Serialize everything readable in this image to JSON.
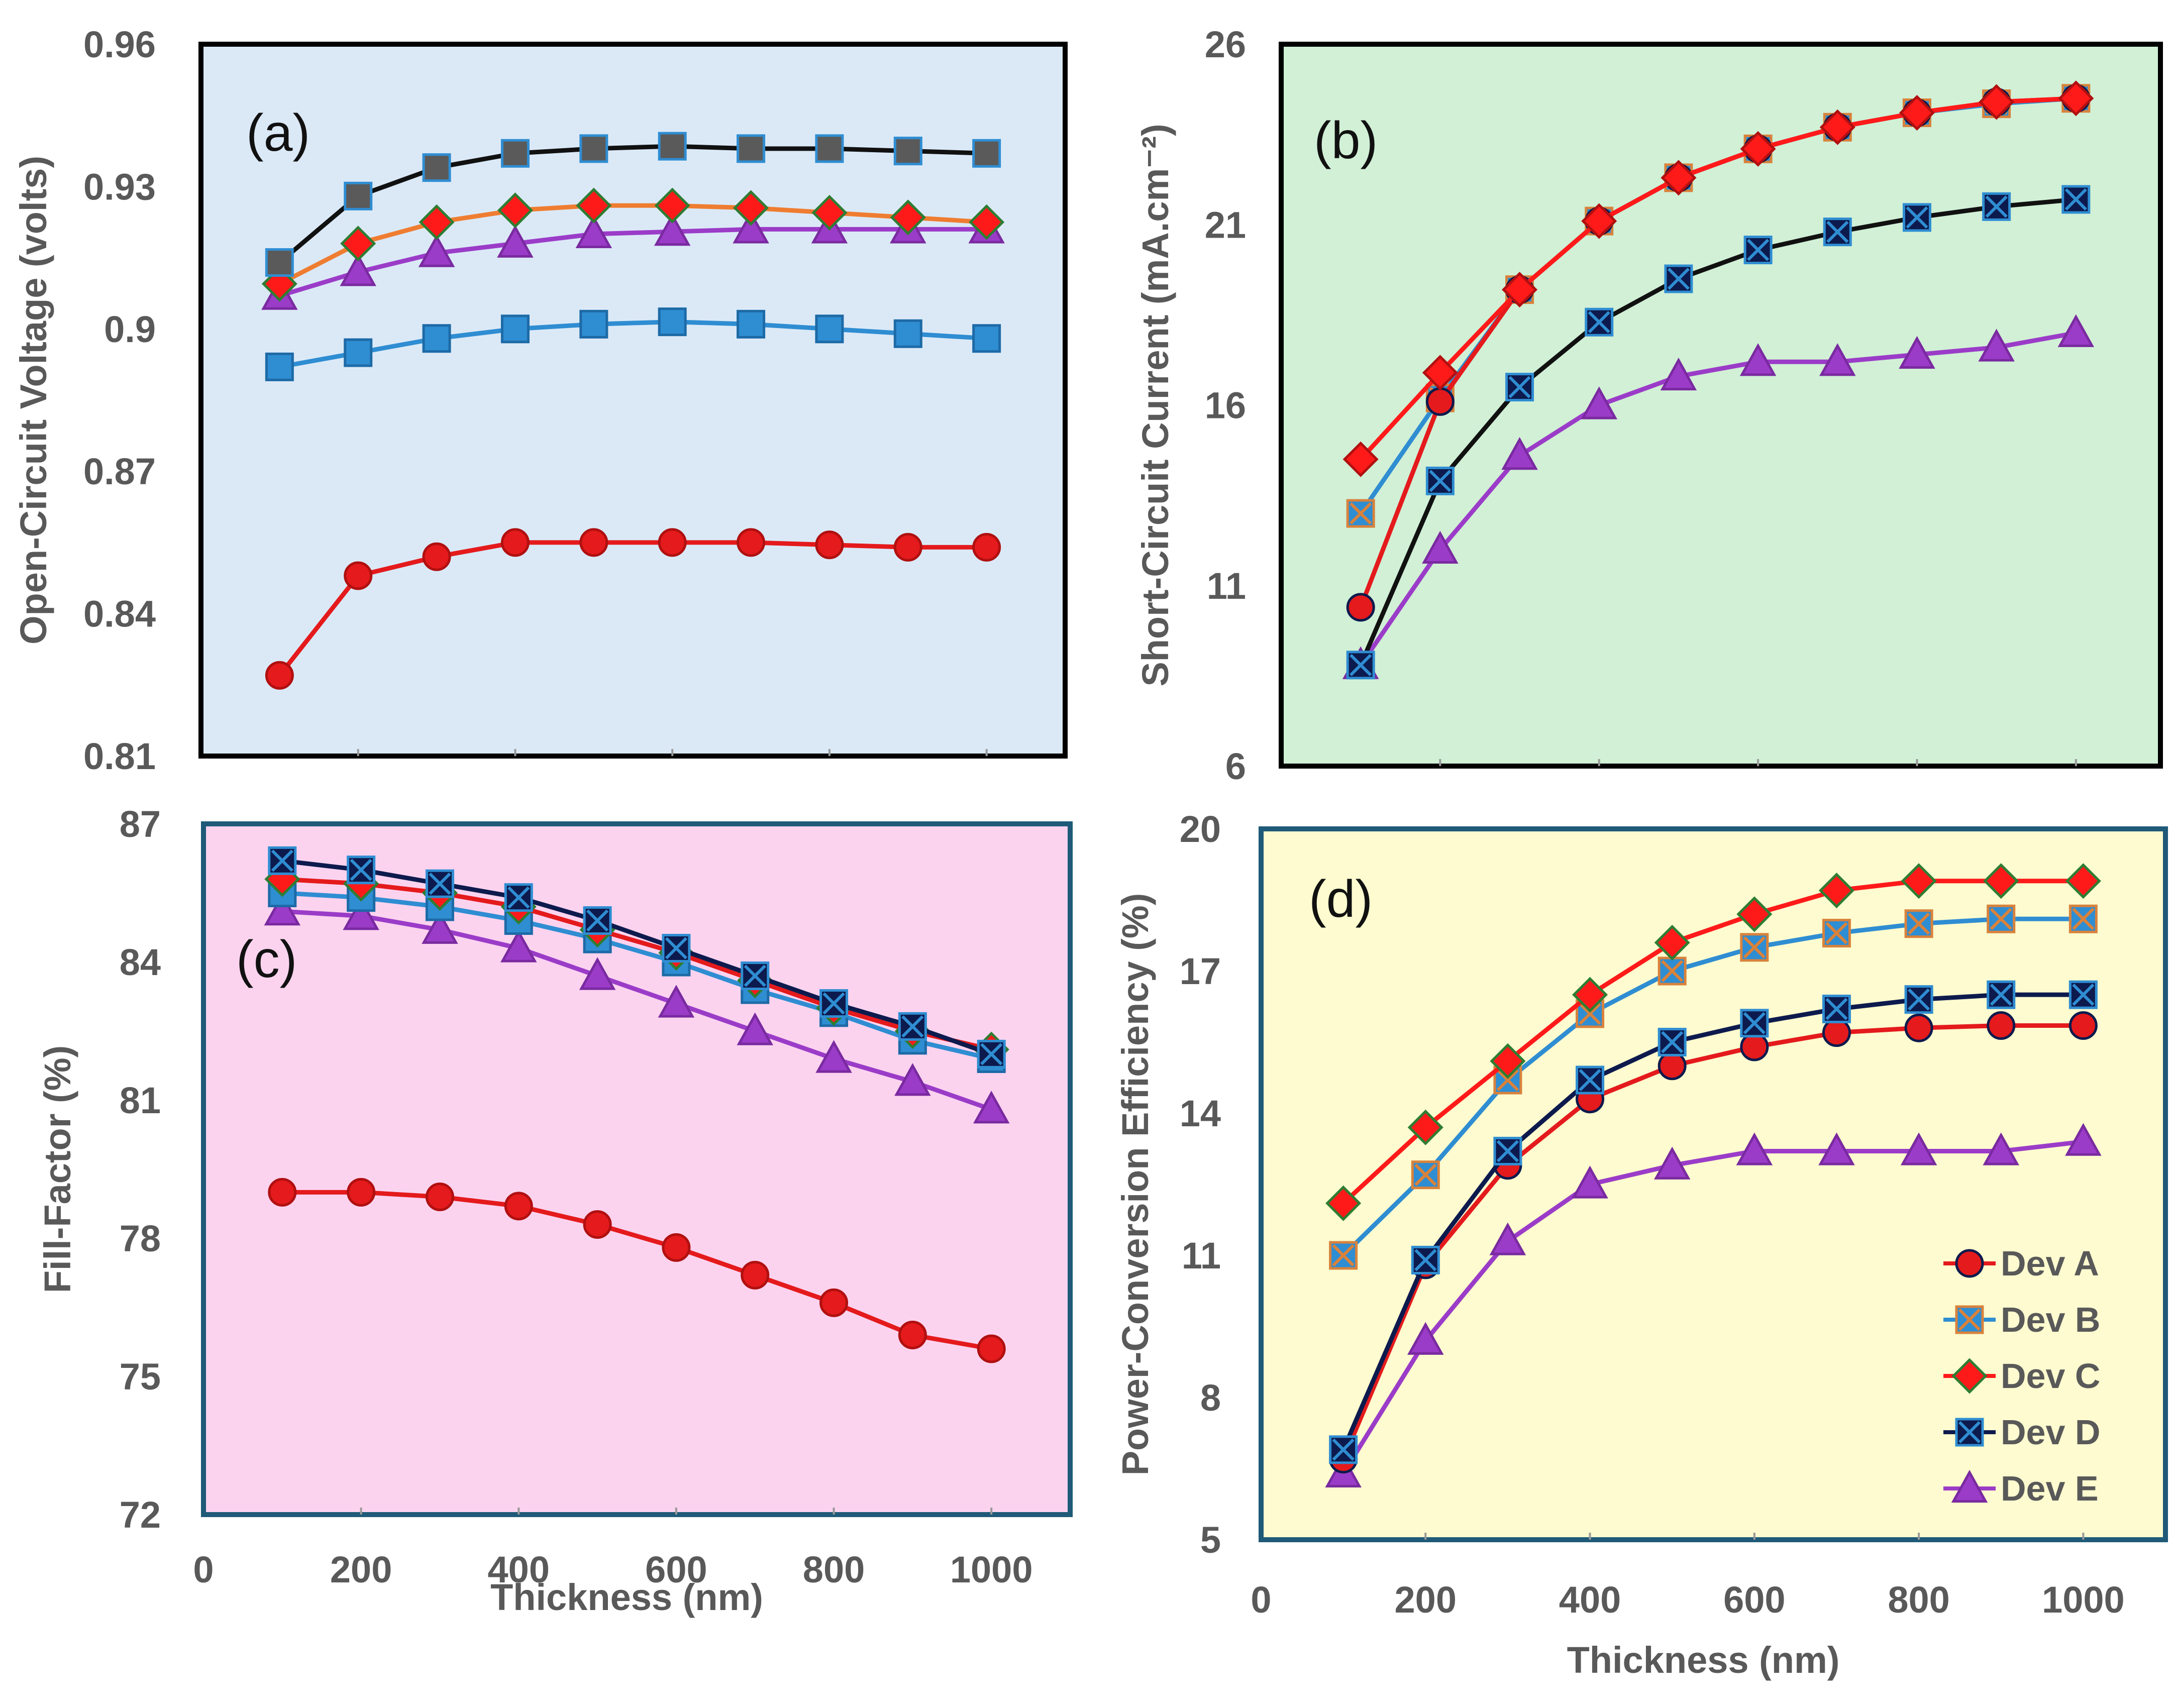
{
  "colors": {
    "dev_a": "#e41a1c",
    "dev_b": "#2f8dd2",
    "dev_c": "#ff1a1a",
    "dev_d": "#0d1a4d",
    "dev_e": "#9b3cc8",
    "orange": "#ef7d31",
    "gray": "#595959",
    "black": "#111111"
  },
  "chart_data": [
    {
      "id": "a",
      "type": "line",
      "panel_label": "(a)",
      "ylabel": "Open-Circuit Voltage (volts)",
      "xlabel": "",
      "ylim": [
        0.81,
        0.96
      ],
      "yticks": [
        "0.81",
        "0.84",
        "0.87",
        "0.9",
        "0.93",
        "0.96"
      ],
      "xlim": [
        0,
        1100
      ],
      "xticks": [],
      "background": "#dbe9f7",
      "x": [
        100,
        200,
        300,
        400,
        500,
        600,
        700,
        800,
        900,
        1000
      ],
      "series": [
        {
          "name": "Dev A",
          "values": [
            0.827,
            0.848,
            0.852,
            0.855,
            0.855,
            0.855,
            0.855,
            0.8545,
            0.854,
            0.854
          ]
        },
        {
          "name": "Dev B",
          "values": [
            0.892,
            0.895,
            0.898,
            0.9,
            0.901,
            0.9015,
            0.901,
            0.9,
            0.899,
            0.898
          ]
        },
        {
          "name": "Dev C",
          "values": [
            0.9095,
            0.918,
            0.9225,
            0.925,
            0.926,
            0.926,
            0.9255,
            0.9245,
            0.9235,
            0.9225
          ]
        },
        {
          "name": "Dev D",
          "values": [
            0.914,
            0.928,
            0.934,
            0.937,
            0.938,
            0.9385,
            0.938,
            0.938,
            0.9375,
            0.937
          ]
        },
        {
          "name": "Dev E",
          "values": [
            0.907,
            0.912,
            0.916,
            0.918,
            0.92,
            0.9205,
            0.921,
            0.921,
            0.921,
            0.921
          ]
        }
      ]
    },
    {
      "id": "b",
      "type": "line",
      "panel_label": "(b)",
      "ylabel": "Short-Circuit Current (mA.cm⁻²)",
      "xlabel": "",
      "ylim": [
        6,
        26
      ],
      "yticks": [
        "6",
        "11",
        "16",
        "21",
        "26"
      ],
      "xlim": [
        0,
        1100
      ],
      "xticks": [],
      "background": "#d1f0d6",
      "x": [
        100,
        200,
        300,
        400,
        500,
        600,
        700,
        800,
        900,
        1000
      ],
      "series": [
        {
          "name": "Dev A",
          "values": [
            10.4,
            16.1,
            19.2,
            21.1,
            22.3,
            23.1,
            23.7,
            24.1,
            24.4,
            24.5
          ]
        },
        {
          "name": "Dev B",
          "values": [
            13.0,
            16.2,
            19.2,
            21.1,
            22.3,
            23.1,
            23.7,
            24.1,
            24.35,
            24.5
          ]
        },
        {
          "name": "Dev C",
          "values": [
            14.5,
            16.9,
            19.2,
            21.1,
            22.3,
            23.1,
            23.7,
            24.1,
            24.4,
            24.5
          ]
        },
        {
          "name": "Dev D",
          "values": [
            8.8,
            13.9,
            16.5,
            18.3,
            19.5,
            20.3,
            20.8,
            21.2,
            21.5,
            21.7
          ]
        },
        {
          "name": "Dev E",
          "values": [
            8.8,
            12.0,
            14.6,
            16.0,
            16.8,
            17.2,
            17.2,
            17.4,
            17.6,
            18.0
          ]
        }
      ]
    },
    {
      "id": "c",
      "type": "line",
      "panel_label": "(c)",
      "ylabel": "Fill-Factor (%)",
      "xlabel": "Thickness (nm)",
      "ylim": [
        72,
        87
      ],
      "yticks": [
        "72",
        "75",
        "78",
        "81",
        "84",
        "87"
      ],
      "xlim": [
        0,
        1100
      ],
      "xticks": [
        "0",
        "200",
        "400",
        "600",
        "800",
        "1000"
      ],
      "background": "#fbd3ef",
      "x": [
        100,
        200,
        300,
        400,
        500,
        600,
        700,
        800,
        900,
        1000
      ],
      "series": [
        {
          "name": "Dev A",
          "values": [
            79.0,
            79.0,
            78.9,
            78.7,
            78.3,
            77.8,
            77.2,
            76.6,
            75.9,
            75.6
          ]
        },
        {
          "name": "Dev B",
          "values": [
            85.5,
            85.4,
            85.2,
            84.9,
            84.5,
            84.0,
            83.4,
            82.9,
            82.3,
            81.9
          ]
        },
        {
          "name": "Dev C",
          "values": [
            85.8,
            85.7,
            85.5,
            85.2,
            84.7,
            84.2,
            83.6,
            83.0,
            82.5,
            82.1
          ]
        },
        {
          "name": "Dev D",
          "values": [
            86.2,
            86.0,
            85.7,
            85.4,
            84.9,
            84.3,
            83.7,
            83.1,
            82.6,
            82.0
          ]
        },
        {
          "name": "Dev E",
          "values": [
            85.1,
            85.0,
            84.7,
            84.3,
            83.7,
            83.1,
            82.5,
            81.9,
            81.4,
            80.8
          ]
        }
      ]
    },
    {
      "id": "d",
      "type": "line",
      "panel_label": "(d)",
      "ylabel": "Power-Conversion Efficiency (%)",
      "xlabel": "Thickness (nm)",
      "ylim": [
        5,
        20
      ],
      "yticks": [
        "5",
        "8",
        "11",
        "14",
        "17",
        "20"
      ],
      "xlim": [
        0,
        1100
      ],
      "xticks": [
        "0",
        "200",
        "400",
        "600",
        "800",
        "1000"
      ],
      "background": "#fdfbcf",
      "x": [
        100,
        200,
        300,
        400,
        500,
        600,
        700,
        800,
        900,
        1000
      ],
      "series": [
        {
          "name": "Dev A",
          "values": [
            6.7,
            10.8,
            12.9,
            14.3,
            15.0,
            15.4,
            15.7,
            15.8,
            15.85,
            15.85
          ]
        },
        {
          "name": "Dev B",
          "values": [
            11.0,
            12.7,
            14.7,
            16.1,
            17.0,
            17.5,
            17.8,
            18.0,
            18.1,
            18.1
          ]
        },
        {
          "name": "Dev C",
          "values": [
            12.1,
            13.7,
            15.1,
            16.5,
            17.6,
            18.2,
            18.7,
            18.9,
            18.9,
            18.9
          ]
        },
        {
          "name": "Dev D",
          "values": [
            6.9,
            10.9,
            13.2,
            14.7,
            15.5,
            15.9,
            16.2,
            16.4,
            16.5,
            16.5
          ]
        },
        {
          "name": "Dev E",
          "values": [
            6.4,
            9.2,
            11.3,
            12.5,
            12.9,
            13.2,
            13.2,
            13.2,
            13.2,
            13.4
          ]
        }
      ],
      "legend": {
        "placement": "bottom-right",
        "entries": [
          "Dev A",
          "Dev B",
          "Dev C",
          "Dev D",
          "Dev E"
        ]
      }
    }
  ]
}
